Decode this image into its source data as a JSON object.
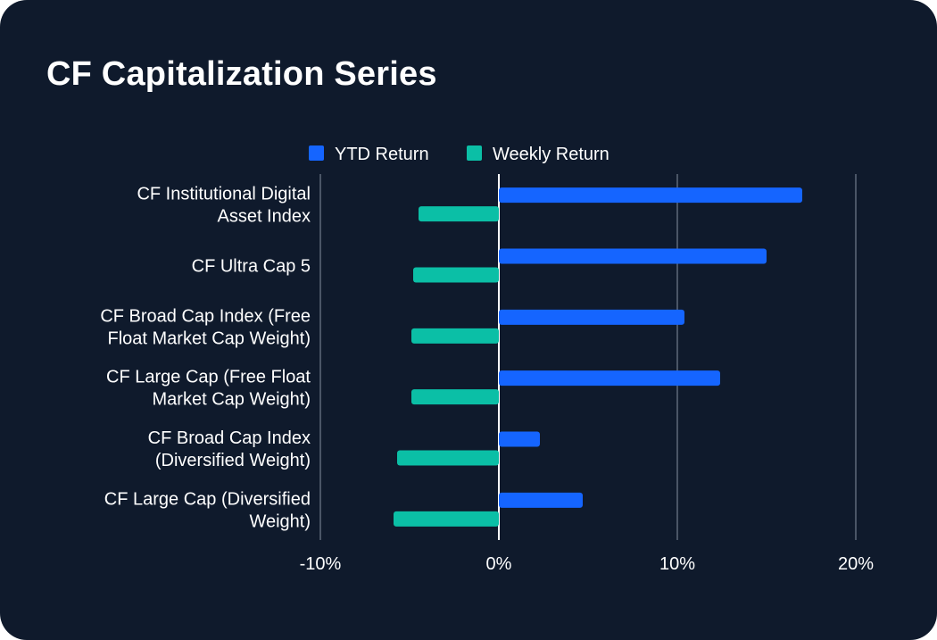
{
  "chart_data": {
    "type": "bar",
    "orientation": "horizontal",
    "title": "CF Capitalization Series",
    "categories": [
      [
        "CF Institutional Digital",
        "Asset Index"
      ],
      [
        "CF Ultra Cap 5"
      ],
      [
        "CF Broad Cap Index (Free",
        "Float Market Cap Weight)"
      ],
      [
        "CF Large Cap (Free Float",
        "Market Cap Weight)"
      ],
      [
        "CF Broad Cap Index",
        "(Diversified Weight)"
      ],
      [
        "CF Large Cap (Diversified",
        "Weight)"
      ]
    ],
    "series": [
      {
        "name": "YTD Return",
        "color": "#1565ff",
        "values": [
          17.0,
          15.0,
          10.4,
          12.4,
          2.3,
          4.7
        ]
      },
      {
        "name": "Weekly Return",
        "color": "#0bbfa6",
        "values": [
          -4.5,
          -4.8,
          -4.9,
          -4.9,
          -5.7,
          -5.9
        ]
      }
    ],
    "xlim": [
      -10,
      20
    ],
    "xticks": [
      -10,
      0,
      10,
      20
    ],
    "xtick_labels": [
      "-10%",
      "0%",
      "10%",
      "20%"
    ],
    "legend_position": "top-center",
    "grid": true
  }
}
